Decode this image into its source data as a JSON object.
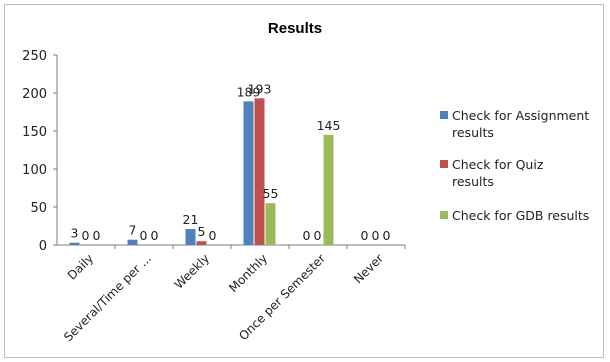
{
  "chart_data": {
    "type": "bar",
    "title": "Results",
    "categories": [
      "Daily",
      "Several/Time per ...",
      "Weekly",
      "Monthly",
      "Once per Semester",
      "Never"
    ],
    "series": [
      {
        "name": "Check for Assignment results",
        "color": "#4f81bd",
        "values": [
          3,
          7,
          21,
          189,
          0,
          0
        ]
      },
      {
        "name": "Check for Quiz results",
        "color": "#c0504d",
        "values": [
          0,
          0,
          5,
          193,
          0,
          0
        ]
      },
      {
        "name": "Check for GDB results",
        "color": "#9bbb59",
        "values": [
          0,
          0,
          0,
          55,
          145,
          0
        ]
      }
    ],
    "ylim": [
      0,
      250
    ],
    "yticks": [
      0,
      50,
      100,
      150,
      200,
      250
    ],
    "grid": false,
    "legend_position": "right",
    "xlabel": "",
    "ylabel": ""
  }
}
